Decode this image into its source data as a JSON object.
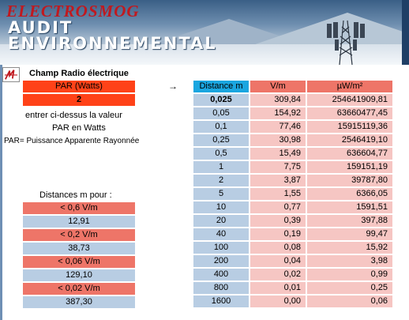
{
  "banner": {
    "brand": "ElectroSmog",
    "line1": "AUDIT",
    "line2": "ENVIRONNEMENTAL"
  },
  "panel": {
    "title": "Champ Radio électrique",
    "par_header": "PAR (Watts)",
    "par_value": "2",
    "arrow": "→",
    "instruction": "entrer ci-dessus  la valeur",
    "unit_note": "PAR en Watts",
    "definition": "PAR= Puissance Apparente Rayonnée",
    "distances_label": "Distances m pour :",
    "thresholds": [
      {
        "label": "< 0,6 V/m",
        "distance": "12,91"
      },
      {
        "label": "< 0,2 V/m",
        "distance": "38,73"
      },
      {
        "label": "< 0,06 V/m",
        "distance": "129,10"
      },
      {
        "label": "< 0,02 V/m",
        "distance": "387,30"
      }
    ]
  },
  "table": {
    "headers": [
      "Distance m",
      "V/m",
      "µW/m²"
    ],
    "rows": [
      {
        "distance": "0,025",
        "vm": "309,84",
        "uw": "254641909,81"
      },
      {
        "distance": "0,05",
        "vm": "154,92",
        "uw": "63660477,45"
      },
      {
        "distance": "0,1",
        "vm": "77,46",
        "uw": "15915119,36"
      },
      {
        "distance": "0,25",
        "vm": "30,98",
        "uw": "2546419,10"
      },
      {
        "distance": "0,5",
        "vm": "15,49",
        "uw": "636604,77"
      },
      {
        "distance": "1",
        "vm": "7,75",
        "uw": "159151,19"
      },
      {
        "distance": "2",
        "vm": "3,87",
        "uw": "39787,80"
      },
      {
        "distance": "5",
        "vm": "1,55",
        "uw": "6366,05"
      },
      {
        "distance": "10",
        "vm": "0,77",
        "uw": "1591,51"
      },
      {
        "distance": "20",
        "vm": "0,39",
        "uw": "397,88"
      },
      {
        "distance": "40",
        "vm": "0,19",
        "uw": "99,47"
      },
      {
        "distance": "100",
        "vm": "0,08",
        "uw": "15,92"
      },
      {
        "distance": "200",
        "vm": "0,04",
        "uw": "3,98"
      },
      {
        "distance": "400",
        "vm": "0,02",
        "uw": "0,99"
      },
      {
        "distance": "800",
        "vm": "0,01",
        "uw": "0,25"
      },
      {
        "distance": "1600",
        "vm": "0,00",
        "uw": "0,06"
      }
    ]
  }
}
